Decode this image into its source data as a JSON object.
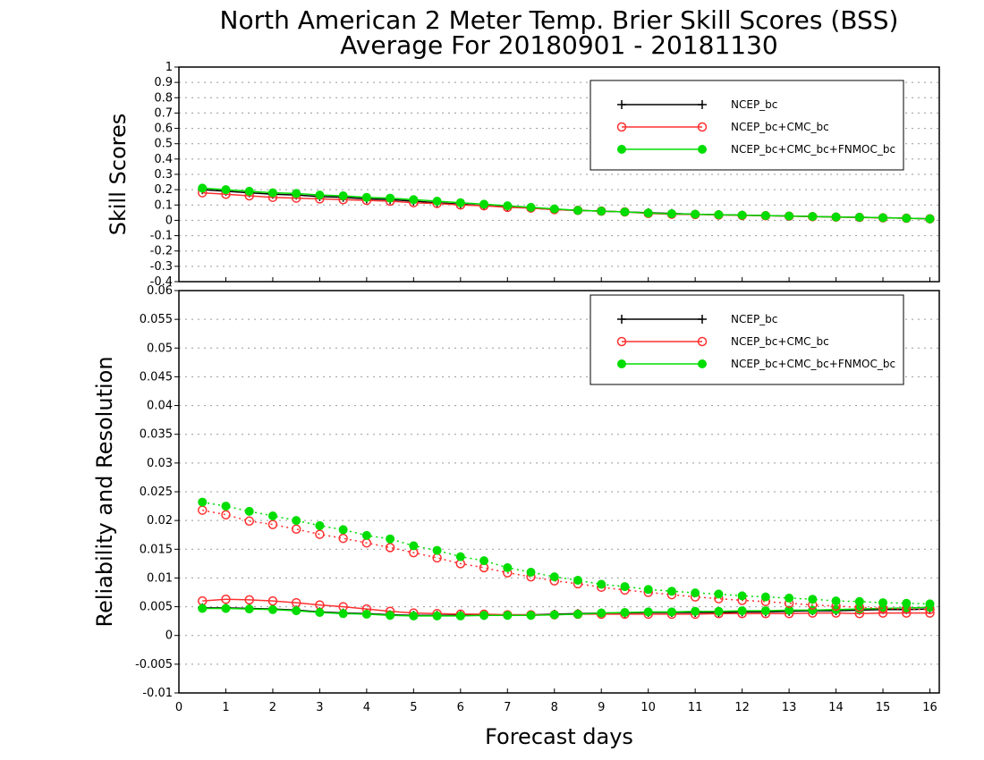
{
  "title_line1": "North American 2 Meter Temp. Brier Skill Scores (BSS)",
  "title_line2": "Average For 20180901 - 20181130",
  "xlabel": "Forecast days",
  "colors": {
    "ncep": "#000000",
    "cmc": "#ff3030",
    "fnmoc": "#00dd00",
    "grid": "#999999"
  },
  "chart_data": [
    {
      "type": "line",
      "ylabel": "Skill Scores",
      "xlim": [
        0,
        16.2
      ],
      "ylim": [
        -0.4,
        1
      ],
      "xticks": [
        0,
        1,
        2,
        3,
        4,
        5,
        6,
        7,
        8,
        9,
        10,
        11,
        12,
        13,
        14,
        15,
        16
      ],
      "xtick_labels": [
        "0",
        "1",
        "2",
        "3",
        "4",
        "5",
        "6",
        "7",
        "8",
        "9",
        "10",
        "11",
        "12",
        "13",
        "14",
        "15",
        "16"
      ],
      "yticks": [
        -0.4,
        -0.3,
        -0.2,
        -0.1,
        0,
        0.1,
        0.2,
        0.3,
        0.4,
        0.5,
        0.6,
        0.7,
        0.8,
        0.9,
        1
      ],
      "ytick_labels": [
        "-0.4",
        "-0.3",
        "-0.2",
        "-0.1",
        "0",
        "0.1",
        "0.2",
        "0.3",
        "0.4",
        "0.5",
        "0.6",
        "0.7",
        "0.8",
        "0.9",
        "1"
      ],
      "grid": true,
      "legend_position": "top-right",
      "x": [
        0.5,
        1,
        1.5,
        2,
        2.5,
        3,
        3.5,
        4,
        4.5,
        5,
        5.5,
        6,
        6.5,
        7,
        7.5,
        8,
        8.5,
        9,
        9.5,
        10,
        10.5,
        11,
        11.5,
        12,
        12.5,
        13,
        13.5,
        14,
        14.5,
        15,
        15.5,
        16
      ],
      "series": [
        {
          "name": "NCEP_bc",
          "color": "#000000",
          "marker": "plus",
          "dash": "solid",
          "values": [
            0.2,
            0.19,
            0.18,
            0.17,
            0.165,
            0.155,
            0.15,
            0.14,
            0.135,
            0.125,
            0.115,
            0.105,
            0.095,
            0.09,
            0.08,
            0.07,
            0.065,
            0.06,
            0.055,
            0.05,
            0.045,
            0.04,
            0.037,
            0.034,
            0.031,
            0.028,
            0.025,
            0.022,
            0.02,
            0.017,
            0.014,
            0.01
          ]
        },
        {
          "name": "NCEP_bc+CMC_bc",
          "color": "#ff3030",
          "marker": "circle-open",
          "dash": "solid",
          "values": [
            0.18,
            0.17,
            0.16,
            0.15,
            0.145,
            0.14,
            0.135,
            0.13,
            0.125,
            0.115,
            0.11,
            0.1,
            0.095,
            0.085,
            0.08,
            0.07,
            0.065,
            0.06,
            0.055,
            0.045,
            0.04,
            0.038,
            0.035,
            0.032,
            0.03,
            0.027,
            0.024,
            0.021,
            0.019,
            0.016,
            0.014,
            0.01
          ]
        },
        {
          "name": "NCEP_bc+CMC_bc+FNMOC_bc",
          "color": "#00dd00",
          "marker": "circle-filled",
          "dash": "solid",
          "values": [
            0.21,
            0.2,
            0.19,
            0.18,
            0.175,
            0.165,
            0.16,
            0.15,
            0.145,
            0.135,
            0.125,
            0.115,
            0.105,
            0.095,
            0.085,
            0.075,
            0.065,
            0.06,
            0.055,
            0.048,
            0.043,
            0.04,
            0.037,
            0.034,
            0.031,
            0.028,
            0.025,
            0.022,
            0.02,
            0.017,
            0.014,
            0.01
          ]
        }
      ]
    },
    {
      "type": "line",
      "ylabel": "Reliability and Resolution",
      "xlim": [
        0,
        16.2
      ],
      "ylim": [
        -0.01,
        0.06
      ],
      "xticks": [
        0,
        1,
        2,
        3,
        4,
        5,
        6,
        7,
        8,
        9,
        10,
        11,
        12,
        13,
        14,
        15,
        16
      ],
      "xtick_labels": [
        "0",
        "1",
        "2",
        "3",
        "4",
        "5",
        "6",
        "7",
        "8",
        "9",
        "10",
        "11",
        "12",
        "13",
        "14",
        "15",
        "16"
      ],
      "yticks": [
        -0.01,
        -0.005,
        0,
        0.005,
        0.01,
        0.015,
        0.02,
        0.025,
        0.03,
        0.035,
        0.04,
        0.045,
        0.05,
        0.055,
        0.06
      ],
      "ytick_labels": [
        "-0.01",
        "-0.005",
        "0",
        "0.005",
        "0.01",
        "0.015",
        "0.02",
        "0.025",
        "0.03",
        "0.035",
        "0.04",
        "0.045",
        "0.05",
        "0.055",
        "0.06"
      ],
      "grid": true,
      "legend_position": "top-right",
      "x": [
        0.5,
        1,
        1.5,
        2,
        2.5,
        3,
        3.5,
        4,
        4.5,
        5,
        5.5,
        6,
        6.5,
        7,
        7.5,
        8,
        8.5,
        9,
        9.5,
        10,
        10.5,
        11,
        11.5,
        12,
        12.5,
        13,
        13.5,
        14,
        14.5,
        15,
        15.5,
        16
      ],
      "series": [
        {
          "name": "NCEP_bc reliability",
          "color": "#000000",
          "marker": "plus",
          "dash": "solid",
          "values": [
            0.0048,
            0.0048,
            0.0047,
            0.0046,
            0.0044,
            0.0041,
            0.0039,
            0.0038,
            0.0036,
            0.0035,
            0.0035,
            0.0035,
            0.0035,
            0.0036,
            0.0036,
            0.0037,
            0.0038,
            0.0039,
            0.0039,
            0.004,
            0.004,
            0.004,
            0.004,
            0.0041,
            0.0041,
            0.0042,
            0.0043,
            0.0043,
            0.0044,
            0.0045,
            0.0045,
            0.0046
          ]
        },
        {
          "name": "NCEP_bc+CMC_bc reliability",
          "color": "#ff3030",
          "marker": "circle-open",
          "dash": "solid",
          "values": [
            0.006,
            0.0063,
            0.0062,
            0.006,
            0.0057,
            0.0053,
            0.005,
            0.0046,
            0.0042,
            0.0039,
            0.0038,
            0.0037,
            0.0037,
            0.0036,
            0.0036,
            0.0036,
            0.0037,
            0.0037,
            0.0037,
            0.0037,
            0.0037,
            0.0037,
            0.0038,
            0.0038,
            0.0038,
            0.0038,
            0.0039,
            0.0039,
            0.0038,
            0.0039,
            0.0039,
            0.0039
          ]
        },
        {
          "name": "NCEP_bc+CMC_bc+FNMOC_bc reliability",
          "color": "#00dd00",
          "marker": "circle-filled",
          "dash": "solid",
          "values": [
            0.0047,
            0.0047,
            0.0046,
            0.0045,
            0.0043,
            0.004,
            0.0038,
            0.0037,
            0.0035,
            0.0034,
            0.0034,
            0.0034,
            0.0035,
            0.0035,
            0.0035,
            0.0036,
            0.0037,
            0.0039,
            0.004,
            0.0041,
            0.0041,
            0.0042,
            0.0042,
            0.0043,
            0.0043,
            0.0044,
            0.0044,
            0.0045,
            0.0046,
            0.0047,
            0.0048,
            0.0049
          ]
        },
        {
          "name": "NCEP_bc+CMC_bc resolution",
          "color": "#ff3030",
          "marker": "circle-open",
          "dash": "dotted",
          "values": [
            0.0218,
            0.021,
            0.0199,
            0.0193,
            0.0185,
            0.0176,
            0.0169,
            0.0161,
            0.0153,
            0.0144,
            0.0135,
            0.0125,
            0.0118,
            0.0109,
            0.0102,
            0.0095,
            0.009,
            0.0084,
            0.0079,
            0.0075,
            0.0071,
            0.0067,
            0.0064,
            0.0061,
            0.0059,
            0.0056,
            0.0053,
            0.0051,
            0.0049,
            0.0047,
            0.0046,
            0.0045
          ]
        },
        {
          "name": "NCEP_bc+CMC_bc+FNMOC_bc resolution",
          "color": "#00dd00",
          "marker": "circle-filled",
          "dash": "dotted",
          "values": [
            0.0232,
            0.0225,
            0.0216,
            0.0208,
            0.02,
            0.0191,
            0.0184,
            0.0174,
            0.0168,
            0.0156,
            0.0148,
            0.0137,
            0.013,
            0.0118,
            0.011,
            0.0102,
            0.0096,
            0.0089,
            0.0085,
            0.008,
            0.0077,
            0.0074,
            0.0072,
            0.0069,
            0.0067,
            0.0065,
            0.0063,
            0.006,
            0.0059,
            0.0057,
            0.0056,
            0.0055
          ]
        }
      ]
    }
  ],
  "legend": [
    {
      "label": "NCEP_bc",
      "color": "#000000",
      "marker": "plus"
    },
    {
      "label": "NCEP_bc+CMC_bc",
      "color": "#ff3030",
      "marker": "circle-open"
    },
    {
      "label": "NCEP_bc+CMC_bc+FNMOC_bc",
      "color": "#00dd00",
      "marker": "circle-filled"
    }
  ]
}
